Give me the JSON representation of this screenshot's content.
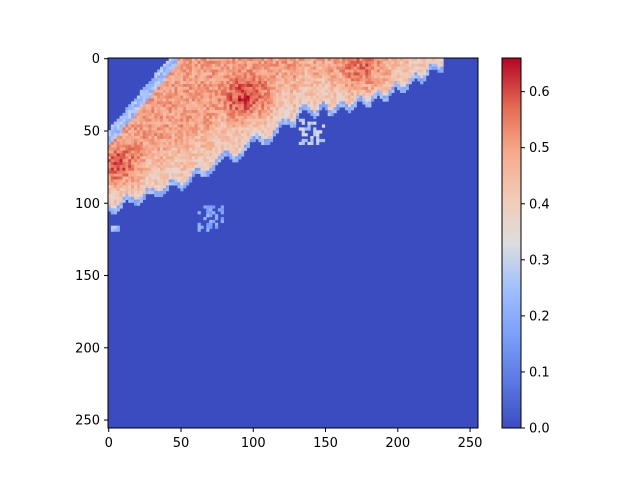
{
  "chart_data": {
    "type": "heatmap",
    "title": "",
    "xlabel": "",
    "ylabel": "",
    "image_size": [
      256,
      256
    ],
    "xlim": [
      0,
      255
    ],
    "ylim": [
      255,
      0
    ],
    "x_ticks": [
      0,
      50,
      100,
      150,
      200,
      250
    ],
    "x_tick_labels": [
      "0",
      "50",
      "100",
      "150",
      "200",
      "250"
    ],
    "y_ticks": [
      0,
      50,
      100,
      150,
      200,
      250
    ],
    "y_tick_labels": [
      "0",
      "50",
      "100",
      "150",
      "200",
      "250"
    ],
    "colormap": "coolwarm",
    "colorbar": {
      "range": [
        0.0,
        0.66
      ],
      "ticks": [
        0.0,
        0.1,
        0.2,
        0.3,
        0.4,
        0.5,
        0.6
      ],
      "tick_labels": [
        "0.0",
        "0.1",
        "0.2",
        "0.3",
        "0.4",
        "0.5",
        "0.6"
      ],
      "low_color": "#3b4cc0",
      "mid_color": "#dddddd",
      "high_color": "#b40426"
    },
    "background_value": 0.0,
    "regions": [
      {
        "kind": "main-band",
        "rows": [
          0,
          105
        ],
        "peak_value": 0.55,
        "typical_value": 0.45
      },
      {
        "kind": "upper-right-lobe",
        "rows": [
          0,
          40
        ],
        "cols": [
          130,
          232
        ],
        "typical_value": 0.45
      },
      {
        "kind": "scattered-low-patches",
        "rows": [
          100,
          160
        ],
        "cols": [
          0,
          100
        ],
        "typical_value": 0.2
      }
    ],
    "grid": false,
    "legend": "colorbar-right"
  }
}
